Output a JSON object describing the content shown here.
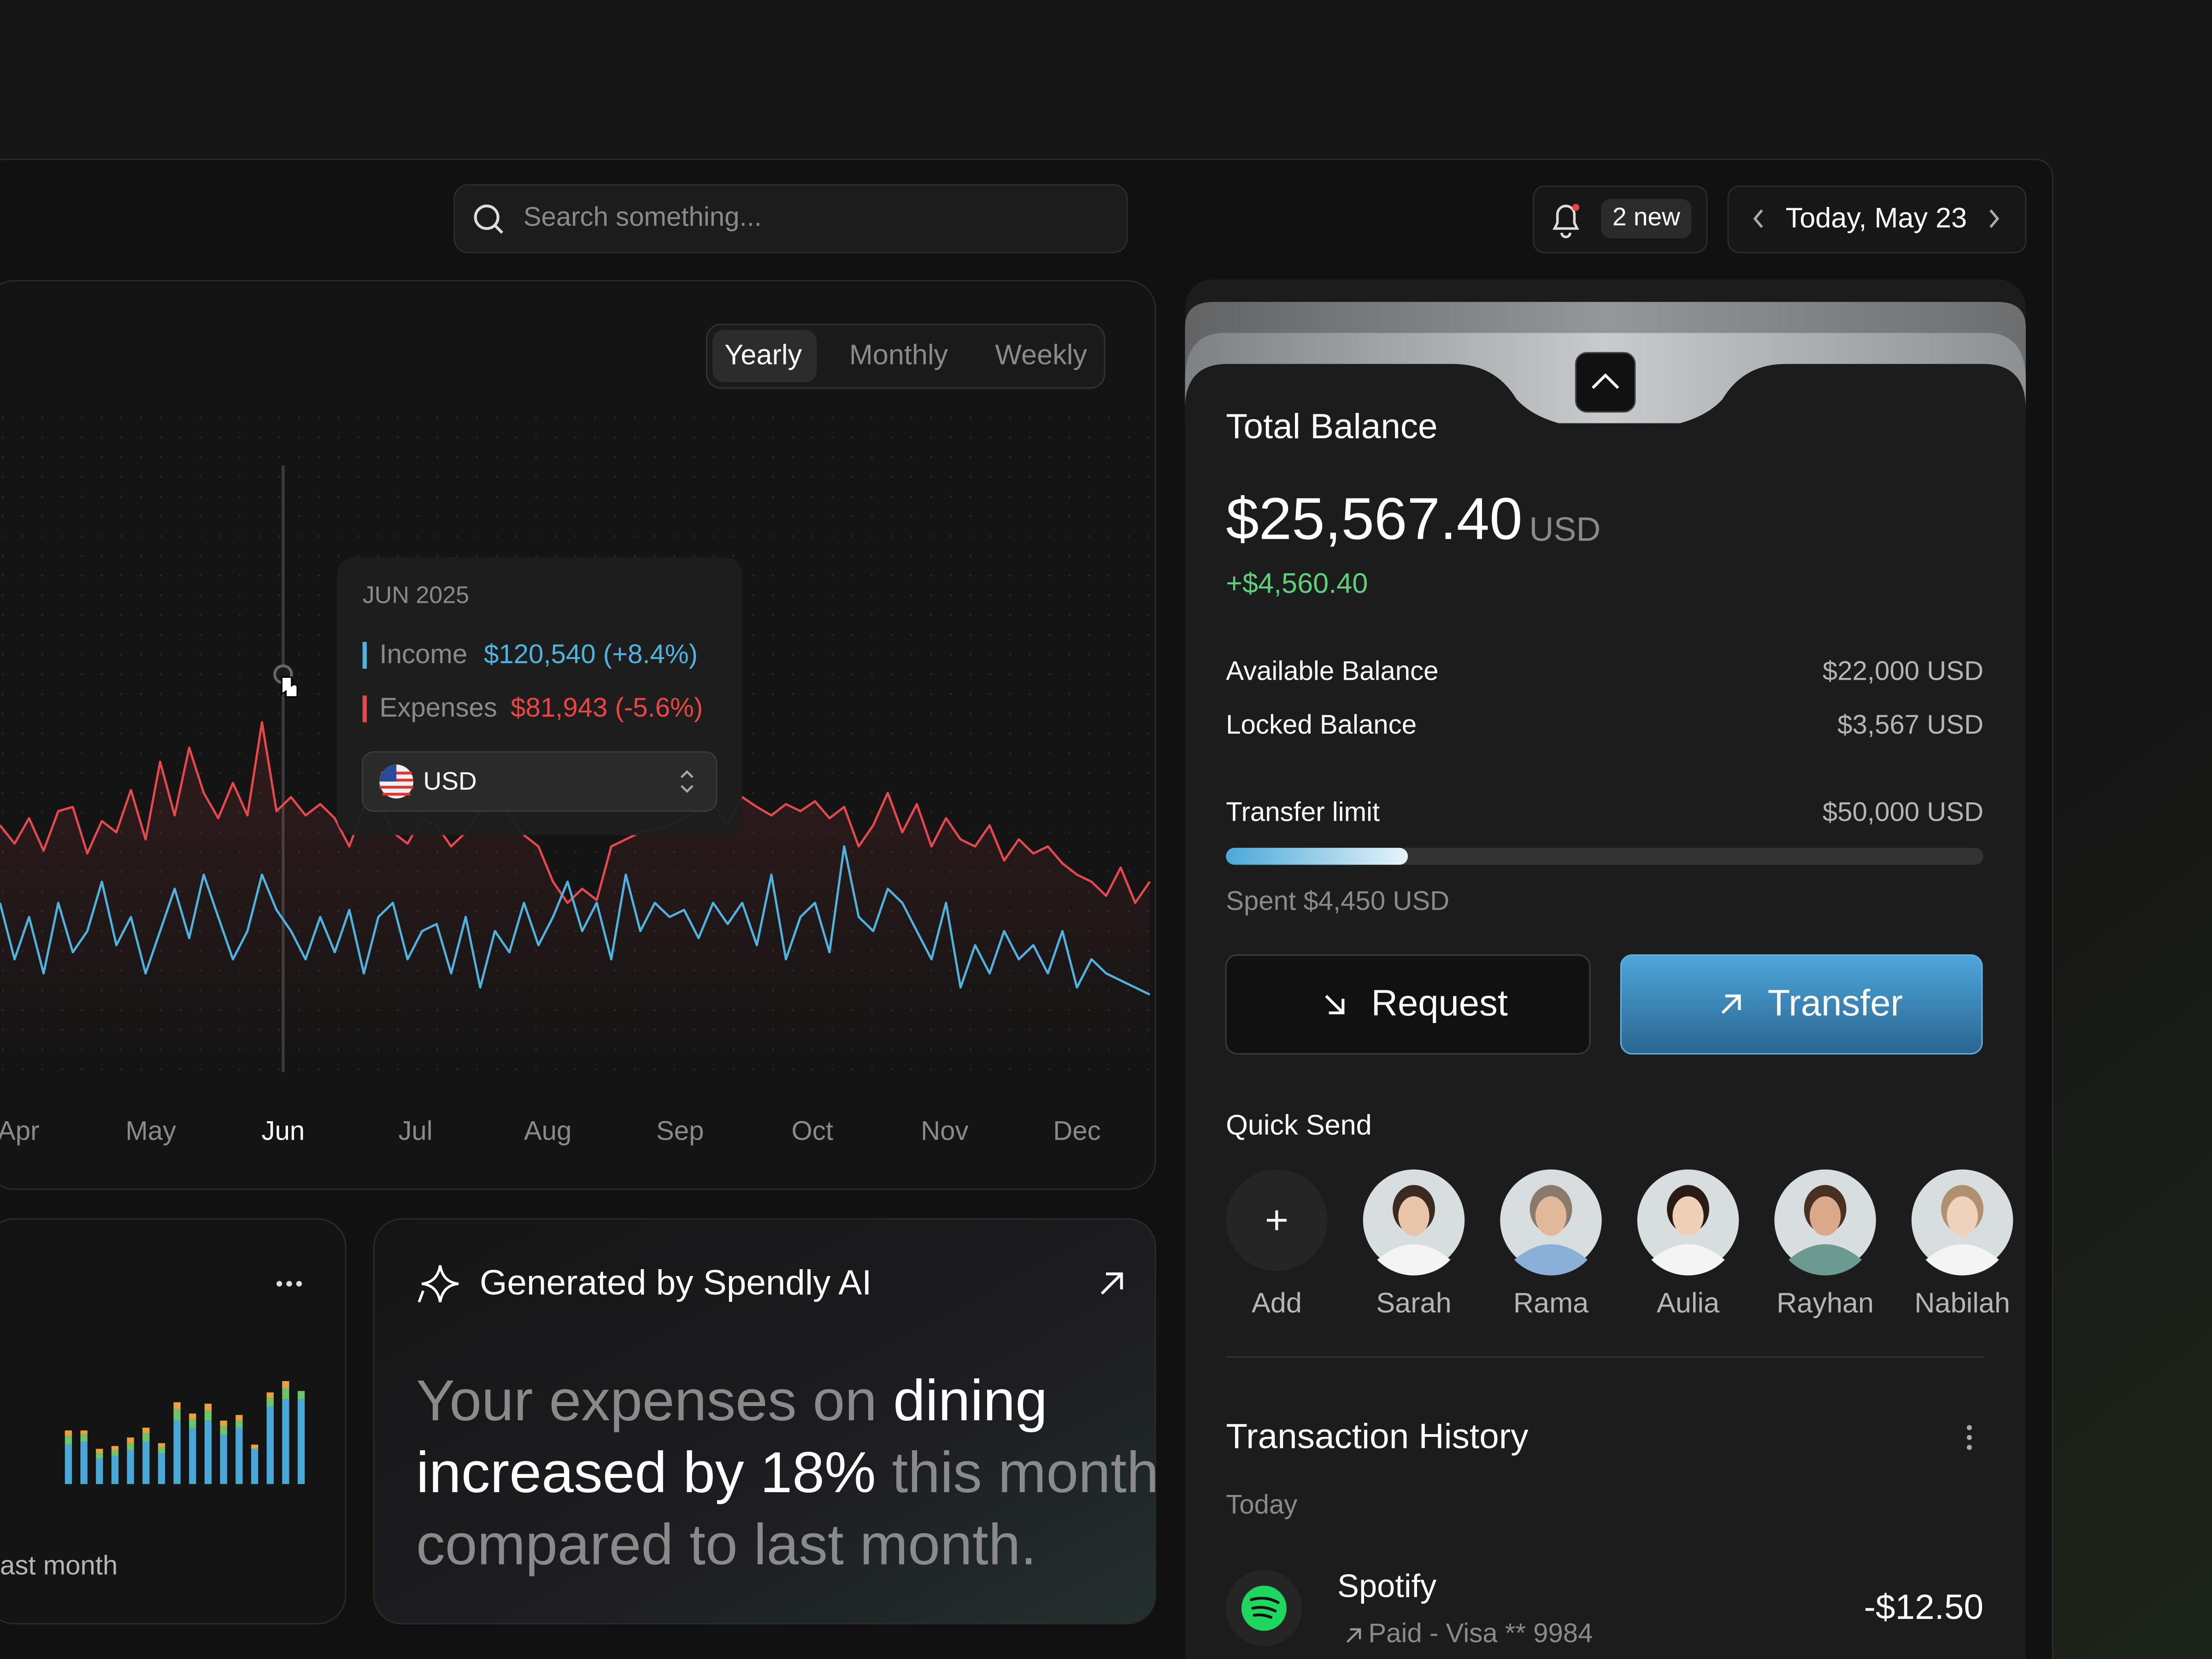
{
  "search": {
    "placeholder": "Search something..."
  },
  "notifications": {
    "label": "2 new"
  },
  "date": {
    "label": "Today, May 23"
  },
  "periods": [
    "Yearly",
    "Monthly",
    "Weekly"
  ],
  "tooltip": {
    "period": "JUN 2025",
    "income": "$120,540 (+8.4%)",
    "expenses": "$81,943 (-5.6%)",
    "currency": "USD"
  },
  "chart_data": [
    {
      "type": "line",
      "x": [
        3.86,
        3.97,
        4.08,
        4.19,
        4.3,
        4.41,
        4.52,
        4.63,
        4.74,
        4.85,
        4.96,
        5.07,
        5.18,
        5.29,
        5.4,
        5.51,
        5.62,
        5.73,
        5.84,
        5.95,
        6.06,
        6.17,
        6.28,
        6.39,
        6.5,
        6.61,
        6.72,
        6.83,
        6.94,
        7.05,
        7.16,
        7.27,
        7.38,
        7.49,
        7.6,
        7.71,
        7.82,
        7.93,
        8.04,
        8.15,
        8.26,
        8.37,
        8.48,
        8.59,
        8.7,
        8.81,
        8.92,
        9.03,
        9.14,
        9.25,
        9.36,
        9.47,
        9.58,
        9.69,
        9.8,
        9.91,
        10.02,
        10.13,
        10.24,
        10.35,
        10.46,
        10.57,
        10.68,
        10.79,
        10.9,
        11.01,
        11.12,
        11.23,
        11.34,
        11.45,
        11.56,
        11.67,
        11.78,
        11.89,
        12,
        12.11,
        12.22,
        12.33,
        12.44,
        12.55
      ],
      "xlim": [
        3.86,
        12.55
      ],
      "xticks": [
        {
          "value": 4,
          "label": "Apr"
        },
        {
          "value": 5,
          "label": "May"
        },
        {
          "value": 6,
          "label": "Jun"
        },
        {
          "value": 7,
          "label": "Jul"
        },
        {
          "value": 8,
          "label": "Aug"
        },
        {
          "value": 9,
          "label": "Sep"
        },
        {
          "value": 10,
          "label": "Oct"
        },
        {
          "value": 11,
          "label": "Nov"
        },
        {
          "value": 12,
          "label": "Dec"
        }
      ],
      "selected": 6,
      "series": [
        {
          "name": "Income",
          "color": "#4fb3e0",
          "values": [
            160,
            120,
            150,
            110,
            160,
            125,
            140,
            175,
            130,
            150,
            110,
            140,
            170,
            135,
            180,
            150,
            120,
            140,
            180,
            155,
            140,
            120,
            150,
            125,
            155,
            110,
            150,
            160,
            120,
            140,
            145,
            110,
            150,
            100,
            140,
            125,
            160,
            130,
            150,
            175,
            140,
            160,
            120,
            180,
            140,
            160,
            150,
            155,
            135,
            160,
            145,
            160,
            130,
            180,
            120,
            150,
            160,
            125,
            200,
            150,
            140,
            170,
            160,
            140,
            120,
            160,
            100,
            130,
            110,
            140,
            120,
            130,
            110,
            140,
            100,
            120,
            110,
            105,
            100,
            95
          ]
        },
        {
          "name": "Expenses",
          "color": "#e5484d",
          "values": [
            215,
            202,
            220,
            197,
            225,
            228,
            195,
            218,
            210,
            240,
            205,
            260,
            222,
            270,
            238,
            220,
            245,
            222,
            288,
            225,
            235,
            222,
            230,
            220,
            200,
            228,
            232,
            210,
            202,
            220,
            215,
            200,
            210,
            225,
            235,
            222,
            208,
            200,
            175,
            160,
            170,
            162,
            200,
            205,
            210,
            212,
            215,
            220,
            225,
            230,
            215,
            235,
            228,
            222,
            230,
            225,
            232,
            220,
            228,
            200,
            215,
            238,
            210,
            230,
            200,
            220,
            205,
            200,
            215,
            190,
            205,
            195,
            200,
            188,
            180,
            175,
            165,
            185,
            160,
            175
          ]
        }
      ]
    },
    {
      "type": "bar",
      "stacked": true,
      "caption": "ast month",
      "series": [
        {
          "color": "#4aa8d8",
          "values": [
            28,
            30,
            18,
            20,
            24,
            30,
            22,
            45,
            40,
            45,
            35,
            40,
            25,
            55,
            60,
            60
          ]
        },
        {
          "color": "#6cc56b",
          "values": [
            6,
            5,
            4,
            4,
            5,
            6,
            4,
            8,
            6,
            7,
            6,
            5,
            0,
            6,
            8,
            6
          ]
        },
        {
          "color": "#e8a23c",
          "values": [
            4,
            3,
            3,
            3,
            4,
            4,
            3,
            5,
            4,
            5,
            4,
            4,
            3,
            4,
            5,
            0
          ]
        }
      ]
    }
  ],
  "insight": {
    "title": "Generated by Spendly AI",
    "parts": [
      "Your expenses on ",
      "dining",
      "increased by 18%",
      " this month",
      "compared to last month."
    ]
  },
  "balance": {
    "title": "Total Balance",
    "amount": "$25,567.40",
    "currency": "USD",
    "change": "+$4,560.40",
    "rows": [
      {
        "label": "Available Balance",
        "value": "$22,000 USD"
      },
      {
        "label": "Locked Balance",
        "value": "$3,567 USD"
      },
      {
        "label": "Transfer limit",
        "value": "$50,000 USD"
      }
    ],
    "spent": "Spent $4,450 USD",
    "request": "Request",
    "transfer": "Transfer"
  },
  "quick_send": {
    "title": "Quick Send",
    "contacts": [
      "Add",
      "Sarah",
      "Rama",
      "Aulia",
      "Rayhan",
      "Nabilah"
    ]
  },
  "transactions": {
    "title": "Transaction History",
    "group": "Today",
    "items": [
      {
        "name": "Spotify",
        "detail": "Paid - Visa ** 9984",
        "amount": "-$12.50"
      }
    ]
  }
}
